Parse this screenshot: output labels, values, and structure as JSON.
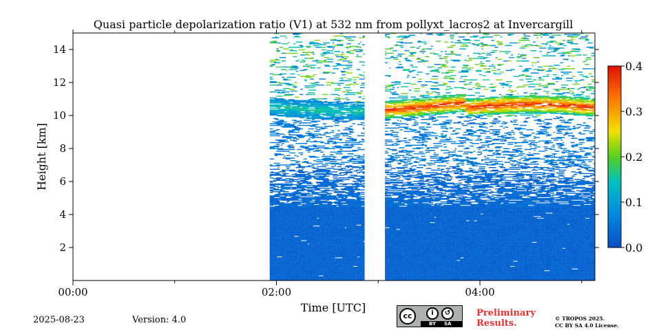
{
  "chart_data": {
    "type": "heatmap",
    "title": "Quasi particle depolarization ratio (V1) at 532 nm from pollyxt_lacros2 at Invercargill",
    "xlabel": "Time [UTC]",
    "ylabel": "Height [km]",
    "xlim_hours": [
      0,
      5.13
    ],
    "ylim": [
      0,
      15
    ],
    "x_ticks": [
      {
        "value": 0,
        "label": "00:00"
      },
      {
        "value": 2,
        "label": "02:00"
      },
      {
        "value": 4,
        "label": "04:00"
      }
    ],
    "x_minor_ticks": [
      1,
      3,
      5
    ],
    "y_ticks": [
      2,
      4,
      6,
      8,
      10,
      12,
      14
    ],
    "y_tick_labels": [
      "2",
      "4",
      "6",
      "8",
      "10",
      "12",
      "14"
    ],
    "colorbar": {
      "range": [
        0,
        0.4
      ],
      "ticks": [
        0.0,
        0.1,
        0.2,
        0.3,
        0.4
      ],
      "tick_labels": [
        "0.0",
        "0.1",
        "0.2",
        "0.3",
        "0.4"
      ],
      "colormap": "jet"
    },
    "data_segments": [
      {
        "start": "01:56",
        "end": "02:52"
      },
      {
        "start": "03:04",
        "end": "05:08"
      }
    ],
    "features": [
      {
        "name": "aerosol layer",
        "height_km": [
          0,
          6
        ],
        "value": 0.02
      },
      {
        "name": "cirrus layer",
        "height_km": [
          10.3,
          11.5
        ],
        "value_max": 0.35
      }
    ],
    "grid": false
  },
  "footer": {
    "date": "2025-08-23",
    "version": "Version: 4.0",
    "preliminary_line1": "Preliminary",
    "preliminary_line2": "Results.",
    "copyright_line1": "© TROPOS 2025.",
    "copyright_line2": "CC BY SA 4.0 License.",
    "cc_label": "cc",
    "cc_by_label": "BY",
    "cc_sa_label": "SA"
  }
}
